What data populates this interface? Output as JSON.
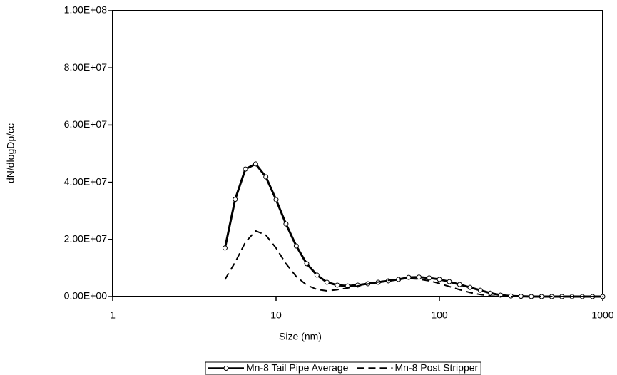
{
  "chart_data": {
    "type": "line",
    "x_label": "Size (nm)",
    "y_label": "dN/dlogDp/cc",
    "xscale": "log",
    "x": [
      4.87,
      5.62,
      6.49,
      7.5,
      8.66,
      10,
      11.5,
      13.3,
      15.4,
      17.8,
      20.5,
      23.7,
      27.4,
      31.6,
      36.5,
      42.2,
      48.7,
      56.2,
      64.9,
      75,
      86.6,
      100,
      115,
      133,
      154,
      178,
      205,
      237,
      274,
      316,
      365,
      422,
      487,
      562,
      649,
      750,
      866,
      1000
    ],
    "series": [
      {
        "name": "Mn-8 Tail Pipe Average",
        "color": "#000000",
        "style": "solid",
        "marker": "circle",
        "values": [
          17000000,
          34000000,
          44600000,
          46400000,
          41900000,
          33900000,
          25400000,
          17700000,
          11500000,
          7500000,
          5000000,
          4000000,
          3700000,
          4000000,
          4500000,
          5000000,
          5500000,
          6000000,
          6700000,
          6800000,
          6500000,
          6000000,
          5200000,
          4200000,
          3200000,
          2200000,
          1200000,
          500000,
          200000,
          100000,
          0,
          0,
          0,
          0,
          0,
          0,
          0,
          0
        ]
      },
      {
        "name": "Mn-8 Post Stripper",
        "color": "#000000",
        "style": "dashed",
        "marker": "none",
        "values": [
          6000000,
          12000000,
          19000000,
          23000000,
          21500000,
          17000000,
          11500000,
          7000000,
          4000000,
          2500000,
          2000000,
          2400000,
          3000000,
          3700000,
          4400000,
          5100000,
          5700000,
          6100000,
          6300000,
          6100000,
          5500000,
          4600000,
          3500000,
          2400000,
          1400000,
          700000,
          200000,
          0,
          0,
          0,
          0,
          0,
          0,
          0,
          0,
          0,
          0,
          0
        ]
      }
    ],
    "xlim": [
      1,
      1000
    ],
    "xticks": [
      1,
      10,
      100,
      1000
    ],
    "ylim": [
      0,
      100000000
    ],
    "yticks": [
      {
        "value": 0,
        "label": "0.00E+00"
      },
      {
        "value": 20000000,
        "label": "2.00E+07"
      },
      {
        "value": 40000000,
        "label": "4.00E+07"
      },
      {
        "value": 60000000,
        "label": "6.00E+07"
      },
      {
        "value": 80000000,
        "label": "8.00E+07"
      },
      {
        "value": 100000000,
        "label": "1.00E+08"
      }
    ],
    "grid": false,
    "legend": "bottom"
  }
}
